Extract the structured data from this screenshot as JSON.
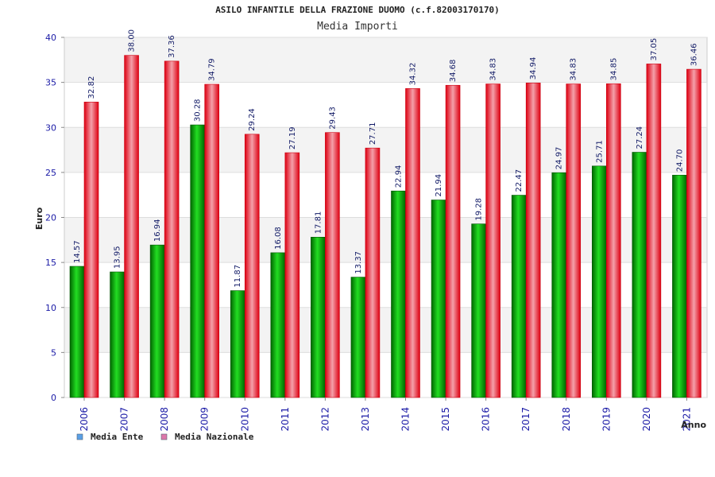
{
  "chart_data": {
    "type": "bar",
    "title": "ASILO INFANTILE DELLA FRAZIONE DUOMO (c.f.82003170170)",
    "subtitle": "Media Importi",
    "ylabel": "Euro",
    "xlabel": "Anno",
    "ylim": [
      0,
      40
    ],
    "yticks": [
      0,
      5,
      10,
      15,
      20,
      25,
      30,
      35,
      40
    ],
    "grid": true,
    "legend_position": "bottom-left",
    "categories": [
      "2006",
      "2007",
      "2008",
      "2009",
      "2010",
      "2011",
      "2012",
      "2013",
      "2014",
      "2015",
      "2016",
      "2017",
      "2018",
      "2019",
      "2020",
      "2021"
    ],
    "series": [
      {
        "name": "Media Ente",
        "color": "#00aa00",
        "legend_color": "#5aa0e6",
        "values": [
          14.57,
          13.95,
          16.94,
          30.28,
          11.87,
          16.08,
          17.81,
          13.37,
          22.94,
          21.94,
          19.28,
          22.47,
          24.97,
          25.71,
          27.24,
          24.7
        ],
        "labels": [
          "14.57",
          "13.95",
          "16.94",
          "30.28",
          "11.87",
          "16.08",
          "17.81",
          "13.37",
          "22.94",
          "21.94",
          "19.28",
          "22.47",
          "24.97",
          "25.71",
          "27.24",
          "24.70"
        ]
      },
      {
        "name": "Media Nazionale",
        "color": "#ee1122",
        "legend_color": "#dd77aa",
        "values": [
          32.82,
          38.0,
          37.36,
          34.79,
          29.24,
          27.19,
          29.43,
          27.71,
          34.32,
          34.68,
          34.83,
          34.94,
          34.83,
          34.85,
          37.05,
          36.46
        ],
        "labels": [
          "32.82",
          "38.00",
          "37.36",
          "34.79",
          "29.24",
          "27.19",
          "29.43",
          "27.71",
          "34.32",
          "34.68",
          "34.83",
          "34.94",
          "34.83",
          "34.85",
          "37.05",
          "36.46"
        ]
      }
    ]
  }
}
